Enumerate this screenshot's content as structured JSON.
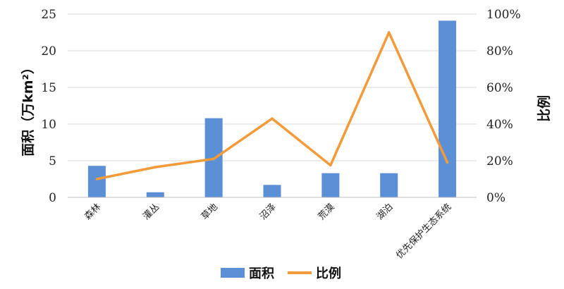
{
  "chart_data": {
    "type": "bar",
    "categories": [
      "森林",
      "灌丛",
      "草地",
      "沼泽",
      "荒漠",
      "湖泊",
      "优先保护生态系统"
    ],
    "series": [
      {
        "name": "面积",
        "type": "bar",
        "axis": "left",
        "color": "#5B8FD6",
        "values": [
          4.3,
          0.7,
          10.8,
          1.7,
          3.3,
          3.3,
          24.1
        ]
      },
      {
        "name": "比例",
        "type": "line",
        "axis": "right",
        "color": "#F39B3B",
        "values": [
          0.1,
          0.165,
          0.21,
          0.43,
          0.175,
          0.9,
          0.19
        ]
      }
    ],
    "ylabel": "面积（万km²）",
    "y2label": "比例",
    "ylim": [
      0,
      25
    ],
    "y2lim": [
      0,
      1.0
    ],
    "yticks": [
      "0",
      "5",
      "10",
      "15",
      "20",
      "25"
    ],
    "y2ticks": [
      "0%",
      "20%",
      "40%",
      "60%",
      "80%",
      "100%"
    ],
    "grid": true,
    "legend": "bottom"
  }
}
